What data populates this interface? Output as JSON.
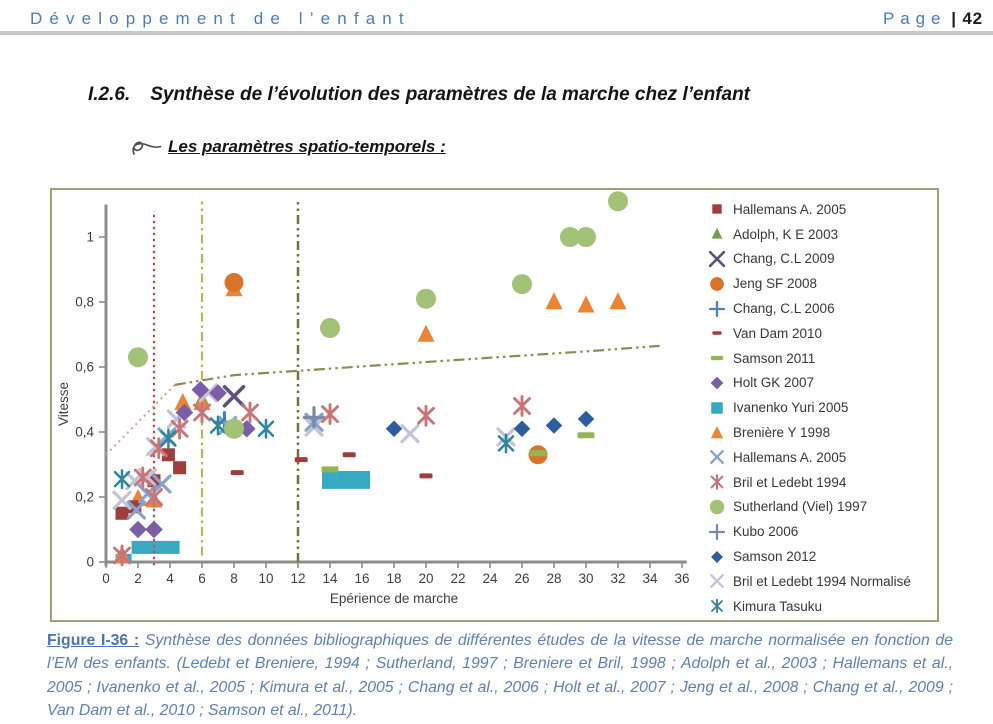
{
  "header": {
    "title": "Développement de l’enfant",
    "page_label": "Page",
    "page_number": "| 42"
  },
  "section": {
    "number": "I.2.6.",
    "title": "Synthèse de l’évolution des paramètres de la marche chez l’enfant"
  },
  "bullet": {
    "icon": "swirl-flourish-icon",
    "label": "Les paramètres spatio-temporels :"
  },
  "caption": {
    "figure_label": "Figure I-36 :",
    "text": "Synthèse des données bibliographiques de différentes études de la vitesse de marche normalisée en fonction de l’EM des enfants. (Ledebt et Breniere, 1994 ; Sutherland, 1997 ; Breniere et Bril, 1998 ; Adolph et al., 2003 ; Hallemans et al., 2005 ; Ivanenko et al., 2005 ; Kimura et al., 2005 ; Chang et al., 2006 ; Holt et al., 2007 ; Jeng et al., 2008 ; Chang et al., 2009 ; Van Dam et al., 2010 ; Samson et al., 2011)."
  },
  "colors": {
    "header_blue": "#4a7ebb",
    "caption_blue": "#5d80b8",
    "chart_border": "#a59f74",
    "axis_gray": "#8c8c8c",
    "rule_gray": "#c7c7c7"
  },
  "chart_data": {
    "type": "scatter",
    "title": "",
    "xlabel": "Epérience de marche",
    "ylabel": "Vitesse",
    "xlim": [
      0,
      36
    ],
    "ylim": [
      0,
      1.13
    ],
    "grid": false,
    "legend_position": "right",
    "xticks": [
      0,
      2,
      4,
      6,
      8,
      10,
      12,
      14,
      16,
      18,
      20,
      22,
      24,
      26,
      28,
      30,
      32,
      34,
      36
    ],
    "yticks": [
      {
        "v": 0,
        "label": "0"
      },
      {
        "v": 0.2,
        "label": "0,2"
      },
      {
        "v": 0.4,
        "label": "0,4"
      },
      {
        "v": 0.6,
        "label": "0,6"
      },
      {
        "v": 0.8,
        "label": "0,8"
      },
      {
        "v": 1,
        "label": "1"
      }
    ],
    "reference_lines": {
      "verticals": [
        {
          "x": 3,
          "y0": -0.01,
          "y1": 1.08,
          "color": "#c0504d",
          "dash": "2.5 3.5",
          "width": 2.2
        },
        {
          "x": 6,
          "y0": 0.02,
          "y1": 1.11,
          "color": "#bcb455",
          "dash": "9 4 2.5 4",
          "width": 2.2
        },
        {
          "x": 12,
          "y0": 0.0,
          "y1": 1.12,
          "color": "#75713c",
          "dash": "9 4 2.5 4 2.5 4",
          "width": 2.5
        }
      ],
      "trend": [
        {
          "color": "#d49c98",
          "dash": "2 4",
          "width": 2,
          "points": [
            [
              0,
              0.33
            ],
            [
              4.3,
              0.545
            ]
          ]
        },
        {
          "color": "#8f8a55",
          "dash": "11 4 2.5 4 2.5 4",
          "width": 2.2,
          "points": [
            [
              4.3,
              0.545
            ],
            [
              8,
              0.575
            ],
            [
              14,
              0.595
            ],
            [
              22,
              0.622
            ],
            [
              30,
              0.648
            ],
            [
              34.6,
              0.665
            ]
          ]
        }
      ]
    },
    "series": [
      {
        "name": "Hallemans A. 2005",
        "marker": "square",
        "color": "#9e3d3b",
        "size": 13,
        "z": 3,
        "points": [
          [
            1,
            0.15
          ],
          [
            1.8,
            0.17
          ],
          [
            3,
            0.25
          ],
          [
            3.9,
            0.33
          ],
          [
            4.6,
            0.29
          ]
        ]
      },
      {
        "name": "Adolph, K E  2003",
        "marker": "triangle",
        "color": "#71a150",
        "size": 15,
        "z": 2,
        "points": [
          [
            6,
            0.5
          ]
        ]
      },
      {
        "name": "Chang, C.L 2009",
        "marker": "x",
        "color": "#5d5277",
        "size": 19,
        "stroke": 3.6,
        "z": 5,
        "points": [
          [
            8,
            0.51
          ]
        ]
      },
      {
        "name": "Jeng SF 2008",
        "marker": "circle",
        "color": "#d9732a",
        "size": 19,
        "z": 7,
        "points": [
          [
            8,
            0.86
          ],
          [
            27,
            0.33
          ]
        ]
      },
      {
        "name": "Chang, C.L 2006",
        "marker": "plus",
        "color": "#4f81bd",
        "size": 16,
        "z": 4,
        "points": [
          [
            7.4,
            0.43
          ]
        ]
      },
      {
        "name": "Van Dam 2010",
        "marker": "hdash",
        "color": "#9e3d3b",
        "w": 13,
        "h": 5,
        "z": 7,
        "points": [
          [
            8.2,
            0.275
          ],
          [
            12.2,
            0.315
          ],
          [
            15.2,
            0.33
          ],
          [
            20,
            0.265
          ]
        ]
      },
      {
        "name": "Samson 2011",
        "marker": "hdash",
        "color": "#94b651",
        "w": 17,
        "h": 6,
        "z": 8,
        "points": [
          [
            14,
            0.285
          ],
          [
            27,
            0.335
          ],
          [
            30,
            0.39
          ]
        ]
      },
      {
        "name": "Holt GK 2007",
        "marker": "diamond",
        "color": "#7a5ea6",
        "size": 16,
        "z": 5,
        "points": [
          [
            2,
            0.1
          ],
          [
            3,
            0.1
          ],
          [
            4.9,
            0.46
          ],
          [
            5.9,
            0.53
          ],
          [
            7,
            0.52
          ],
          [
            8.8,
            0.41
          ]
        ]
      },
      {
        "name": "Ivanenko Yuri 2005",
        "marker": "bar",
        "color": "#38a9c2",
        "size": 16,
        "z": 1,
        "rects": [
          [
            0.6,
            1.6,
            0.0,
            0.025
          ],
          [
            1.6,
            4.6,
            0.025,
            0.065
          ],
          [
            13.5,
            16.5,
            0.225,
            0.28
          ]
        ]
      },
      {
        "name": "Brenière Y  1998",
        "marker": "triangle",
        "color": "#ec8435",
        "size": 17,
        "z": 2,
        "points": [
          [
            1,
            0.02
          ],
          [
            2,
            0.195
          ],
          [
            3,
            0.19
          ],
          [
            4.8,
            0.49
          ],
          [
            6,
            0.49
          ],
          [
            8,
            0.84
          ],
          [
            20,
            0.7
          ],
          [
            28,
            0.8
          ],
          [
            30,
            0.79
          ],
          [
            32,
            0.8
          ]
        ]
      },
      {
        "name": "Hallemans A. 2005",
        "marker": "x",
        "color": "#84a4cf",
        "size": 16,
        "z": 4,
        "points": [
          [
            1.9,
            0.16
          ],
          [
            2.6,
            0.21
          ],
          [
            3.5,
            0.24
          ],
          [
            3.8,
            0.385
          ],
          [
            7.6,
            0.42
          ],
          [
            13,
            0.43
          ]
        ]
      },
      {
        "name": "Bril et Ledebt 1994",
        "marker": "xbar",
        "color": "#c97476",
        "size": 15,
        "z": 5,
        "points": [
          [
            1,
            0.02
          ],
          [
            2.3,
            0.26
          ],
          [
            3,
            0.2
          ],
          [
            3.3,
            0.35
          ],
          [
            4.6,
            0.41
          ],
          [
            6,
            0.46
          ],
          [
            9,
            0.46
          ],
          [
            14,
            0.455
          ],
          [
            20,
            0.45
          ],
          [
            26,
            0.48
          ]
        ]
      },
      {
        "name": "Sutherland (Viel) 1997",
        "marker": "circle",
        "color": "#a3c177",
        "size": 20,
        "z": 6,
        "points": [
          [
            2,
            0.63
          ],
          [
            8,
            0.41
          ],
          [
            14,
            0.72
          ],
          [
            20,
            0.81
          ],
          [
            26,
            0.855
          ],
          [
            29,
            1.0
          ],
          [
            30,
            1.0
          ],
          [
            32,
            1.11
          ]
        ]
      },
      {
        "name": "Kubo 2006",
        "marker": "plus",
        "color": "#7b8aa8",
        "size": 16,
        "z": 4,
        "points": [
          [
            13,
            0.445
          ]
        ]
      },
      {
        "name": "Samson 2012",
        "marker": "diamond",
        "color": "#2d5d9e",
        "size": 15,
        "z": 5,
        "points": [
          [
            18,
            0.41
          ],
          [
            26,
            0.41
          ],
          [
            28,
            0.42
          ],
          [
            30,
            0.44
          ]
        ]
      },
      {
        "name": "Bril et Ledebt 1994 Normalisé",
        "marker": "x",
        "color": "#c4c2d8",
        "size": 16,
        "z": 3,
        "points": [
          [
            1,
            0.19
          ],
          [
            1.8,
            0.25
          ],
          [
            2.6,
            0.26
          ],
          [
            3.1,
            0.355
          ],
          [
            4.4,
            0.44
          ],
          [
            6.4,
            0.52
          ],
          [
            13,
            0.415
          ],
          [
            19,
            0.395
          ],
          [
            25,
            0.385
          ]
        ]
      },
      {
        "name": "Kimura Tasuku",
        "marker": "xbar",
        "color": "#2f859b",
        "size": 14,
        "stroke": 2.8,
        "z": 5,
        "points": [
          [
            1,
            0.255
          ],
          [
            3.9,
            0.38
          ],
          [
            7,
            0.42
          ],
          [
            10,
            0.41
          ],
          [
            25,
            0.365
          ]
        ]
      }
    ]
  }
}
